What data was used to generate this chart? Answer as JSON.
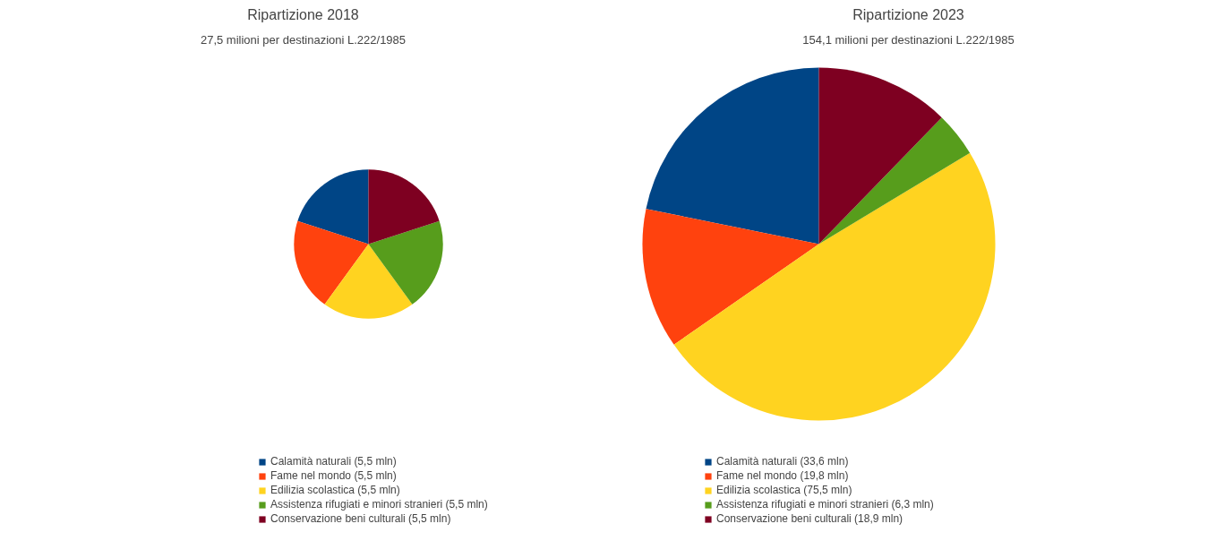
{
  "chart_data": [
    {
      "type": "pie",
      "title": "Ripartizione 2018",
      "subtitle": "27,5 milioni per destinazioni L.222/1985",
      "categories": [
        "Calamità naturali (5,5 mln)",
        "Fame nel mondo (5,5 mln)",
        "Edilizia scolastica (5,5 mln)",
        "Assistenza rifugiati e minori stranieri (5,5 mln)",
        "Conservazione beni culturali (5,5 mln)"
      ],
      "values": [
        5.5,
        5.5,
        5.5,
        5.5,
        5.5
      ],
      "colors": [
        "#004586",
        "#ff420e",
        "#ffd320",
        "#579d1c",
        "#7e0021"
      ],
      "legend": "bottom"
    },
    {
      "type": "pie",
      "title": "Ripartizione 2023",
      "subtitle": "154,1 milioni per destinazioni L.222/1985",
      "categories": [
        "Calamità naturali (33,6 mln)",
        "Fame nel mondo (19,8 mln)",
        "Edilizia scolastica (75,5 mln)",
        "Assistenza rifugiati e minori stranieri (6,3 mln)",
        "Conservazione beni culturali (18,9 mln)"
      ],
      "values": [
        33.6,
        19.8,
        75.5,
        6.3,
        18.9
      ],
      "colors": [
        "#004586",
        "#ff420e",
        "#ffd320",
        "#579d1c",
        "#7e0021"
      ],
      "legend": "bottom"
    }
  ]
}
